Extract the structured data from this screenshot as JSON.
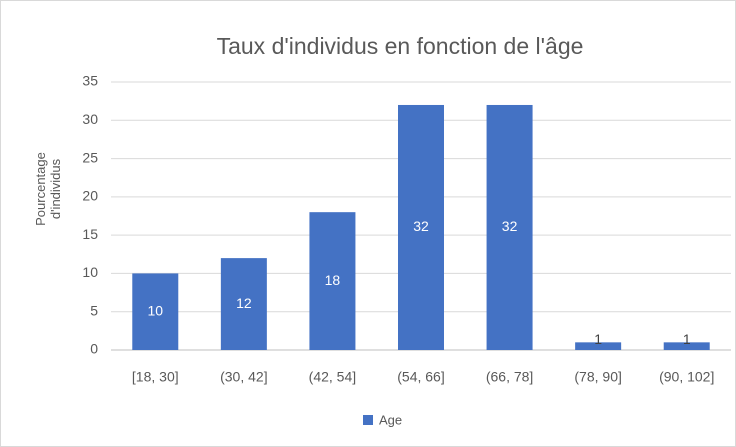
{
  "chart_data": {
    "type": "bar",
    "title": "Taux d'individus en fonction de l'âge",
    "y_label": "Pourcentage d'individus",
    "categories": [
      "[18, 30]",
      "(30, 42]",
      "(42, 54]",
      "(54, 66]",
      "(66, 78]",
      "(78, 90]",
      "(90, 102]"
    ],
    "series": [
      {
        "name": "Age",
        "color": "#4472c4",
        "values": [
          10,
          12,
          18,
          32,
          32,
          1,
          1
        ]
      }
    ],
    "ylim": [
      0,
      35
    ],
    "yticks": [
      0,
      5,
      10,
      15,
      20,
      25,
      30,
      35
    ],
    "grid": true,
    "legend": "bottom"
  }
}
